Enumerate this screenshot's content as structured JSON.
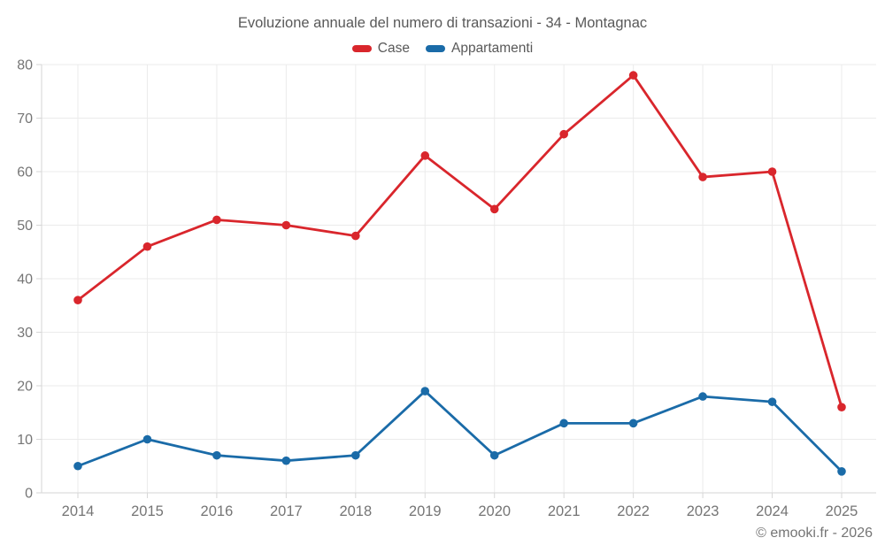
{
  "footer": "© emooki.fr - 2026",
  "chart_data": {
    "type": "line",
    "title": "Evoluzione annuale del numero di transazioni - 34 - Montagnac",
    "categories": [
      "2014",
      "2015",
      "2016",
      "2017",
      "2018",
      "2019",
      "2020",
      "2021",
      "2022",
      "2023",
      "2024",
      "2025"
    ],
    "series": [
      {
        "name": "Case",
        "color": "#d9262c",
        "values": [
          36,
          46,
          51,
          50,
          48,
          63,
          53,
          67,
          78,
          59,
          60,
          16
        ]
      },
      {
        "name": "Appartamenti",
        "color": "#1a6ba8",
        "values": [
          5,
          10,
          7,
          6,
          7,
          19,
          7,
          13,
          13,
          18,
          17,
          4
        ]
      }
    ],
    "ylim": [
      0,
      80
    ],
    "y_ticks": [
      0,
      10,
      20,
      30,
      40,
      50,
      60,
      70,
      80
    ],
    "grid": true,
    "legend_position": "top",
    "colors": {
      "grid_line": "#ebebeb",
      "axis_border": "#d6d6d6",
      "tick_label": "#757575",
      "title_text": "#595959"
    }
  }
}
